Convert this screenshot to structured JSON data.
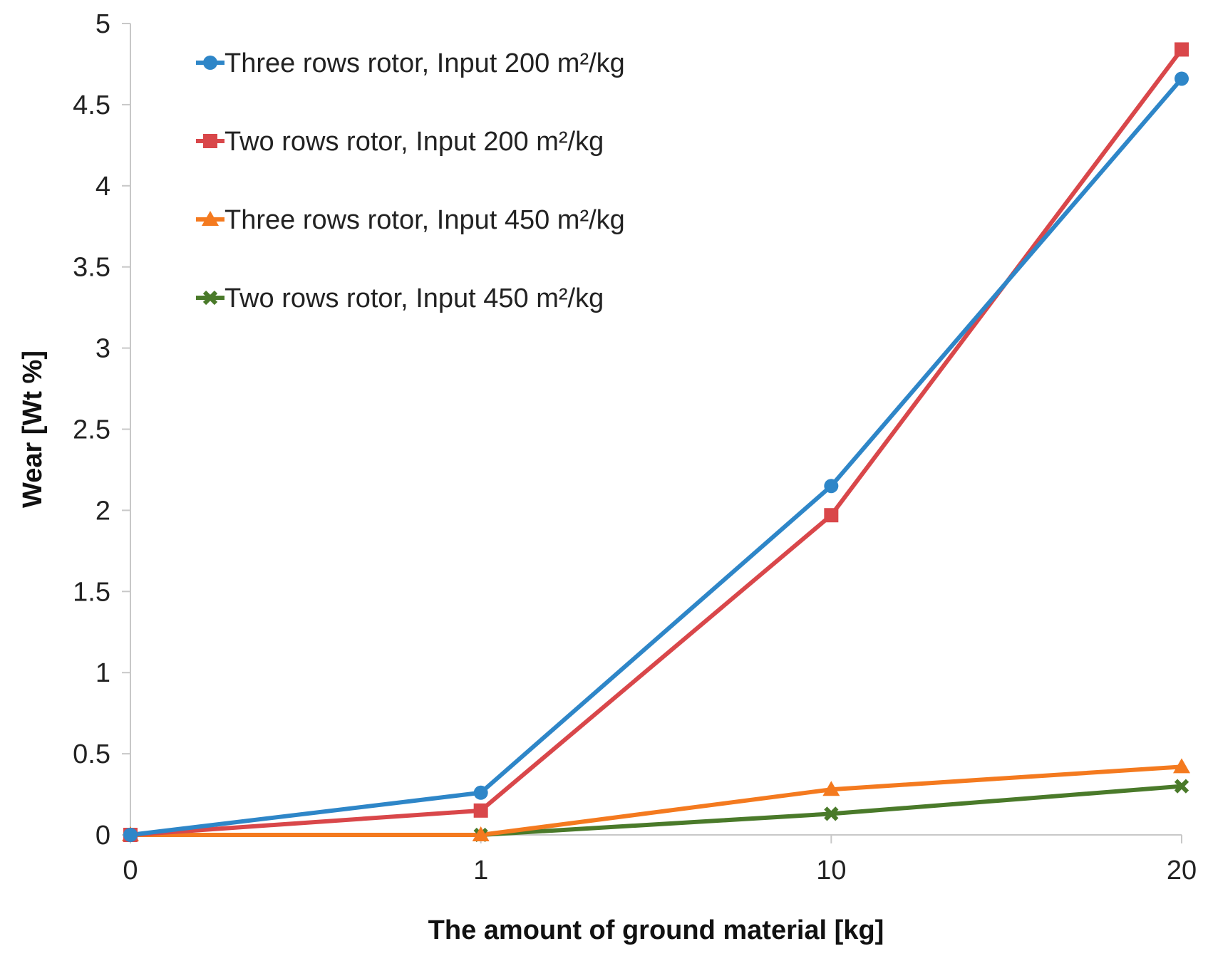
{
  "chart_data": {
    "type": "line",
    "title": "",
    "xlabel": "The amount of ground material [kg]",
    "ylabel": "Wear [Wt %]",
    "categories": [
      "0",
      "1",
      "10",
      "20"
    ],
    "y_ticks": [
      "0",
      "0.5",
      "1",
      "1.5",
      "2",
      "2.5",
      "3",
      "3.5",
      "4",
      "4.5",
      "5"
    ],
    "ylim": [
      0,
      5
    ],
    "grid": false,
    "legend_position": "top-left",
    "series": [
      {
        "name": "Three rows rotor, Input 200 m²/kg",
        "color": "#2e86c8",
        "marker": "circle",
        "values": [
          0,
          0.26,
          2.15,
          4.66
        ]
      },
      {
        "name": "Two rows rotor, Input 200 m²/kg",
        "color": "#d9474a",
        "marker": "square",
        "values": [
          0,
          0.15,
          1.97,
          4.84
        ]
      },
      {
        "name": "Three rows rotor, Input 450 m²/kg",
        "color": "#f47a1f",
        "marker": "triangle",
        "values": [
          0,
          0,
          0.28,
          0.42
        ]
      },
      {
        "name": "Two rows rotor, Input 450 m²/kg",
        "color": "#4a7a2a",
        "marker": "x",
        "values": [
          0,
          0,
          0.13,
          0.3
        ]
      }
    ]
  }
}
